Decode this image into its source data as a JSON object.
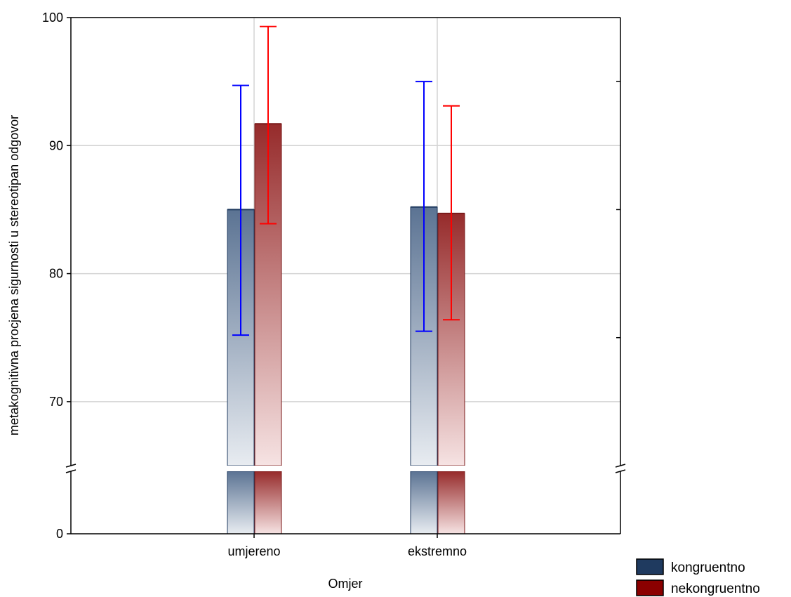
{
  "chart_data": {
    "type": "bar",
    "xlabel": "Omjer",
    "ylabel": "metakognitivna procjena sigurnosti u stereotipan odgovor",
    "categories": [
      "umjereno",
      "ekstremno"
    ],
    "y_ticks_upper": [
      70,
      80,
      90,
      100
    ],
    "y_tick_lower": 0,
    "ylim_upper": [
      65,
      100
    ],
    "ylim_lower": [
      0,
      65
    ],
    "axis_break": true,
    "grid": true,
    "legend_position": "bottom-right",
    "series": [
      {
        "name": "kongruentno",
        "color": "#1f3a5f",
        "values": [
          85.0,
          85.2
        ],
        "error_low": [
          75.2,
          75.5
        ],
        "error_high": [
          94.7,
          95.0
        ],
        "error_color": "#0000ff"
      },
      {
        "name": "nekongruentno",
        "color": "#8b0000",
        "values": [
          91.7,
          84.7
        ],
        "error_low": [
          83.9,
          76.4
        ],
        "error_high": [
          99.3,
          93.1
        ],
        "error_color": "#ff0000"
      }
    ]
  }
}
